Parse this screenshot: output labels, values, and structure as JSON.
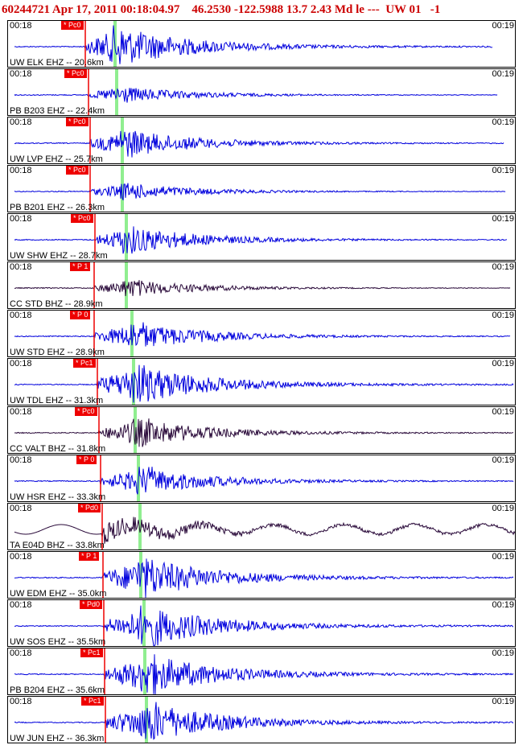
{
  "header": "60244721 Apr 17, 2011 00:18:04.97    46.2530 -122.5988 13.7 2.43 Md le ---  UW 01   -1",
  "time_start": "00:18",
  "time_end": "00:19",
  "colors": {
    "trace_blue": "#0000dd",
    "trace_dark": "#2a0a3a",
    "pick_red": "#ee0000",
    "s_green": "#90ee90"
  },
  "channels": [
    {
      "label": "UW ELK EHZ -- 20.6km",
      "pick": "* Pc0",
      "trace": "blue",
      "amp": "high"
    },
    {
      "label": "PB B203 EHZ -- 22.4km",
      "pick": "* Pc0",
      "trace": "blue",
      "amp": "low"
    },
    {
      "label": "UW LVP EHZ -- 25.7km",
      "pick": "* Pc0",
      "trace": "blue",
      "amp": "med"
    },
    {
      "label": "PB B201 EHZ -- 26.3km",
      "pick": "* Pc0",
      "trace": "blue",
      "amp": "low"
    },
    {
      "label": "UW SHW EHZ -- 28.7km",
      "pick": "* Pc0",
      "trace": "blue",
      "amp": "med"
    },
    {
      "label": "CC STD BHZ -- 28.9km",
      "pick": "* P 1",
      "trace": "dark",
      "amp": "low"
    },
    {
      "label": "UW STD EHZ -- 28.9km",
      "pick": "* P 0",
      "trace": "blue",
      "amp": "med"
    },
    {
      "label": "UW TDL EHZ -- 31.3km",
      "pick": "* Pc1",
      "trace": "blue",
      "amp": "high"
    },
    {
      "label": "CC VALT BHZ -- 31.8km",
      "pick": "* Pc0",
      "trace": "dark",
      "amp": "med"
    },
    {
      "label": "UW HSR EHZ -- 33.3km",
      "pick": "* P 0",
      "trace": "blue",
      "amp": "med"
    },
    {
      "label": "TA E04D BHZ -- 33.8km",
      "pick": "* Pd0",
      "trace": "dark",
      "amp": "wave"
    },
    {
      "label": "UW EDM EHZ -- 35.0km",
      "pick": "* P 1",
      "trace": "blue",
      "amp": "high"
    },
    {
      "label": "UW SOS EHZ -- 35.5km",
      "pick": "* Pd0",
      "trace": "blue",
      "amp": "high"
    },
    {
      "label": "PB B204 EHZ -- 35.6km",
      "pick": "* Pc1",
      "trace": "blue",
      "amp": "high"
    },
    {
      "label": "UW JUN EHZ -- 36.3km",
      "pick": "* Pc1",
      "trace": "blue",
      "amp": "high"
    }
  ]
}
